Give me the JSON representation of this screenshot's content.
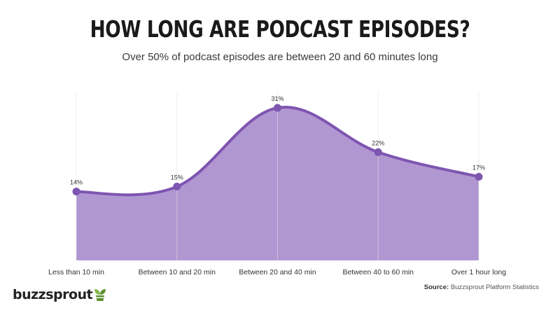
{
  "header": {
    "title": "HOW LONG ARE PODCAST EPISODES?",
    "subtitle": "Over 50% of podcast episodes are between 20 and 60 minutes long"
  },
  "chart_data": {
    "type": "area",
    "categories": [
      "Less than 10 min",
      "Between 10 and 20 min",
      "Between 20 and 40 min",
      "Between 40 to 60 min",
      "Over 1 hour long"
    ],
    "values": [
      14,
      15,
      31,
      22,
      17
    ],
    "data_labels": [
      "14%",
      "15%",
      "31%",
      "22%",
      "17%"
    ],
    "ylim": [
      0,
      33
    ],
    "grid": "vertical",
    "colors": {
      "fill": "#b197d1",
      "line": "#7e55b1",
      "point": "#7e55b1",
      "grid": "#e3e3e3"
    }
  },
  "footer": {
    "source_label": "Source:",
    "source_text": "Buzzsprout Platform Statistics",
    "logo_text": "buzzsprout",
    "logo_icon": "sprout-icon",
    "logo_colors": [
      "#5b8f2f",
      "#86b84a"
    ]
  }
}
